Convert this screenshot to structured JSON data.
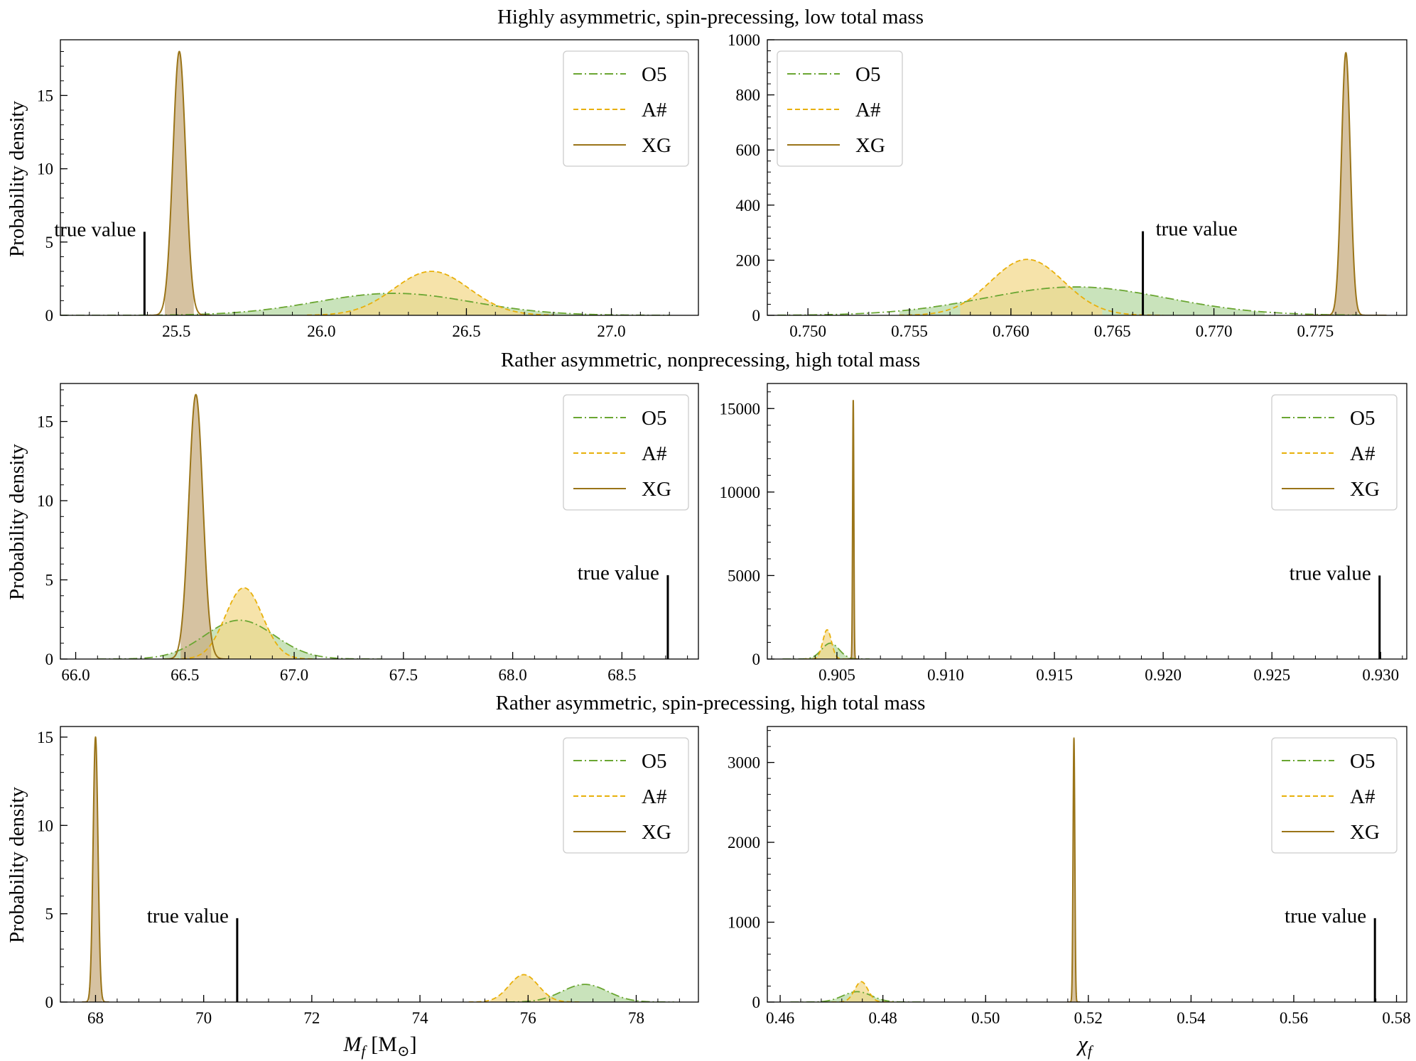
{
  "figure": {
    "row_titles": [
      "Highly asymmetric, spin-precessing, low total mass",
      "Rather asymmetric, nonprecessing, high total mass",
      "Rather asymmetric, spin-precessing, high total mass"
    ],
    "ylabel": "Probability density",
    "xlabel_left_main": "M",
    "xlabel_left_sub": "f",
    "xlabel_left_unit": "[M",
    "xlabel_left_unit_sub": "⊙",
    "xlabel_left_close": "]",
    "xlabel_right_main": "χ",
    "xlabel_right_sub": "f",
    "true_value_label": "true value",
    "legend": [
      "O5",
      "A#",
      "XG"
    ]
  },
  "colors": {
    "O5": "#6aa632",
    "A#": "#e8b00a",
    "XG": "#9a7418",
    "O5_fill": "#b7d9a4",
    "A#_fill": "#f3d98e",
    "XG_fill": "#c8ad82",
    "true_value": "#000000"
  },
  "chart_data": [
    {
      "type": "line",
      "panel": "top-left",
      "title": "Highly asymmetric, spin-precessing, low total mass",
      "xlabel": "",
      "ylabel": "Probability density",
      "xlim": [
        25.1,
        27.3
      ],
      "ylim": [
        0,
        18.8
      ],
      "xticks": [
        25.5,
        26.0,
        26.5,
        27.0
      ],
      "xtick_labels": [
        "25.5",
        "26.0",
        "26.5",
        "27.0"
      ],
      "xtick_decimals": 1,
      "yticks": [
        0,
        5,
        10,
        15
      ],
      "ytick_labels": [
        "0",
        "5",
        "10",
        "15"
      ],
      "legend_position": "top-right",
      "true_value": 25.39,
      "true_value_height": 5.7,
      "true_value_label_side": "left",
      "series": [
        {
          "name": "O5",
          "mean": 26.25,
          "sigma": 0.27,
          "peak": 1.5,
          "range": [
            25.1,
            27.2
          ],
          "fill": [
            25.55,
            26.95
          ]
        },
        {
          "name": "A#",
          "mean": 26.38,
          "sigma": 0.13,
          "peak": 3.0,
          "range": [
            25.95,
            26.8
          ],
          "fill": [
            26.05,
            26.7
          ]
        },
        {
          "name": "XG",
          "mean": 25.51,
          "sigma": 0.022,
          "peak": 18.0,
          "range": [
            25.4,
            25.62
          ],
          "fill": [
            25.46,
            25.56
          ]
        }
      ]
    },
    {
      "type": "line",
      "panel": "top-right",
      "title": "",
      "xlabel": "",
      "ylabel": "",
      "xlim": [
        0.748,
        0.7795
      ],
      "ylim": [
        0,
        1000
      ],
      "xticks": [
        0.75,
        0.755,
        0.76,
        0.765,
        0.77,
        0.775
      ],
      "xtick_labels": [
        "0.750",
        "0.755",
        "0.760",
        "0.765",
        "0.770",
        "0.775"
      ],
      "xtick_decimals": 3,
      "yticks": [
        0,
        200,
        400,
        600,
        800,
        1000
      ],
      "ytick_labels": [
        "0",
        "200",
        "400",
        "600",
        "800",
        "1000"
      ],
      "legend_position": "top-left",
      "true_value": 0.7665,
      "true_value_height": 305,
      "true_value_label_side": "right",
      "series": [
        {
          "name": "O5",
          "mean": 0.7632,
          "sigma": 0.0045,
          "peak": 103,
          "range": [
            0.7485,
            0.7775
          ],
          "fill": [
            0.7545,
            0.7725
          ]
        },
        {
          "name": "A#",
          "mean": 0.7608,
          "sigma": 0.0018,
          "peak": 203,
          "range": [
            0.7545,
            0.7675
          ],
          "fill": [
            0.7575,
            0.7645
          ]
        },
        {
          "name": "XG",
          "mean": 0.7765,
          "sigma": 0.00022,
          "peak": 953,
          "range": [
            0.7745,
            0.7785
          ],
          "fill": [
            0.7759,
            0.7771
          ]
        }
      ]
    },
    {
      "type": "line",
      "panel": "middle-left",
      "title": "Rather asymmetric, nonprecessing, high total mass",
      "xlabel": "",
      "ylabel": "Probability density",
      "xlim": [
        65.93,
        68.85
      ],
      "ylim": [
        0,
        17.4
      ],
      "xticks": [
        66.0,
        66.5,
        67.0,
        67.5,
        68.0,
        68.5
      ],
      "xtick_labels": [
        "66.0",
        "66.5",
        "67.0",
        "67.5",
        "68.0",
        "68.5"
      ],
      "xtick_decimals": 1,
      "yticks": [
        0,
        5,
        10,
        15
      ],
      "ytick_labels": [
        "0",
        "5",
        "10",
        "15"
      ],
      "legend_position": "top-right",
      "true_value": 68.71,
      "true_value_height": 5.3,
      "true_value_label_side": "left",
      "series": [
        {
          "name": "O5",
          "mean": 66.75,
          "sigma": 0.16,
          "peak": 2.45,
          "range": [
            66.1,
            67.4
          ],
          "fill": [
            66.4,
            67.1
          ]
        },
        {
          "name": "A#",
          "mean": 66.77,
          "sigma": 0.085,
          "peak": 4.5,
          "range": [
            66.45,
            67.1
          ],
          "fill": [
            66.55,
            67.0
          ]
        },
        {
          "name": "XG",
          "mean": 66.55,
          "sigma": 0.032,
          "peak": 16.7,
          "range": [
            66.4,
            66.7
          ],
          "fill": [
            66.48,
            66.62
          ]
        }
      ]
    },
    {
      "type": "line",
      "panel": "middle-right",
      "title": "",
      "xlabel": "",
      "ylabel": "",
      "xlim": [
        0.9018,
        0.9312
      ],
      "ylim": [
        0,
        16500
      ],
      "xticks": [
        0.905,
        0.91,
        0.915,
        0.92,
        0.925,
        0.93
      ],
      "xtick_labels": [
        "0.905",
        "0.910",
        "0.915",
        "0.920",
        "0.925",
        "0.930"
      ],
      "xtick_decimals": 3,
      "yticks": [
        0,
        5000,
        10000,
        15000
      ],
      "ytick_labels": [
        "0",
        "5000",
        "10000",
        "15000"
      ],
      "legend_position": "top-right",
      "true_value": 0.92995,
      "true_value_height": 5000,
      "true_value_label_side": "left",
      "series": [
        {
          "name": "O5",
          "mean": 0.9047,
          "sigma": 0.0004,
          "peak": 950,
          "range": [
            0.9025,
            0.9065
          ],
          "fill": [
            0.9035,
            0.906
          ]
        },
        {
          "name": "A#",
          "mean": 0.90455,
          "sigma": 0.0002,
          "peak": 1750,
          "range": [
            0.9035,
            0.9058
          ],
          "fill": [
            0.904,
            0.9052
          ]
        },
        {
          "name": "XG",
          "mean": 0.90575,
          "sigma": 2.8e-05,
          "peak": 15500,
          "range": [
            0.9055,
            0.906
          ],
          "fill": [
            0.9056,
            0.9059
          ]
        }
      ]
    },
    {
      "type": "line",
      "panel": "bottom-left",
      "title": "Rather asymmetric, spin-precessing, high total mass",
      "xlabel": "M_f [M_⊙]",
      "ylabel": "Probability density",
      "xlim": [
        67.35,
        79.15
      ],
      "ylim": [
        0,
        15.6
      ],
      "xticks": [
        68,
        70,
        72,
        74,
        76,
        78
      ],
      "xtick_labels": [
        "68",
        "70",
        "72",
        "74",
        "76",
        "78"
      ],
      "xtick_decimals": 0,
      "yticks": [
        0,
        5,
        10,
        15
      ],
      "ytick_labels": [
        "0",
        "5",
        "10",
        "15"
      ],
      "legend_position": "top-right",
      "true_value": 70.62,
      "true_value_height": 4.75,
      "true_value_label_side": "left",
      "series": [
        {
          "name": "O5",
          "mean": 77.05,
          "sigma": 0.42,
          "peak": 1.0,
          "range": [
            75.6,
            78.7
          ],
          "fill": [
            76.2,
            78.0
          ]
        },
        {
          "name": "A#",
          "mean": 75.92,
          "sigma": 0.27,
          "peak": 1.55,
          "range": [
            74.9,
            77.0
          ],
          "fill": [
            75.3,
            76.6
          ]
        },
        {
          "name": "XG",
          "mean": 68.0,
          "sigma": 0.045,
          "peak": 15.0,
          "range": [
            67.75,
            68.25
          ],
          "fill": [
            67.88,
            68.12
          ]
        }
      ]
    },
    {
      "type": "line",
      "panel": "bottom-right",
      "title": "",
      "xlabel": "χ_f",
      "ylabel": "",
      "xlim": [
        0.4575,
        0.582
      ],
      "ylim": [
        0,
        3450
      ],
      "xticks": [
        0.46,
        0.48,
        0.5,
        0.52,
        0.54,
        0.56,
        0.58
      ],
      "xtick_labels": [
        "0.46",
        "0.48",
        "0.50",
        "0.52",
        "0.54",
        "0.56",
        "0.58"
      ],
      "xtick_decimals": 2,
      "yticks": [
        0,
        1000,
        2000,
        3000
      ],
      "ytick_labels": [
        "0",
        "1000",
        "2000",
        "3000"
      ],
      "legend_position": "top-right",
      "true_value": 0.5758,
      "true_value_height": 1050,
      "true_value_label_side": "left",
      "series": [
        {
          "name": "O5",
          "mean": 0.475,
          "sigma": 0.0028,
          "peak": 130,
          "range": [
            0.462,
            0.488
          ],
          "fill": [
            0.468,
            0.482
          ]
        },
        {
          "name": "A#",
          "mean": 0.4758,
          "sigma": 0.0013,
          "peak": 255,
          "range": [
            0.47,
            0.482
          ],
          "fill": [
            0.472,
            0.4795
          ]
        },
        {
          "name": "XG",
          "mean": 0.5172,
          "sigma": 0.00017,
          "peak": 3300,
          "range": [
            0.516,
            0.5184
          ],
          "fill": [
            0.5168,
            0.5176
          ]
        }
      ]
    }
  ]
}
